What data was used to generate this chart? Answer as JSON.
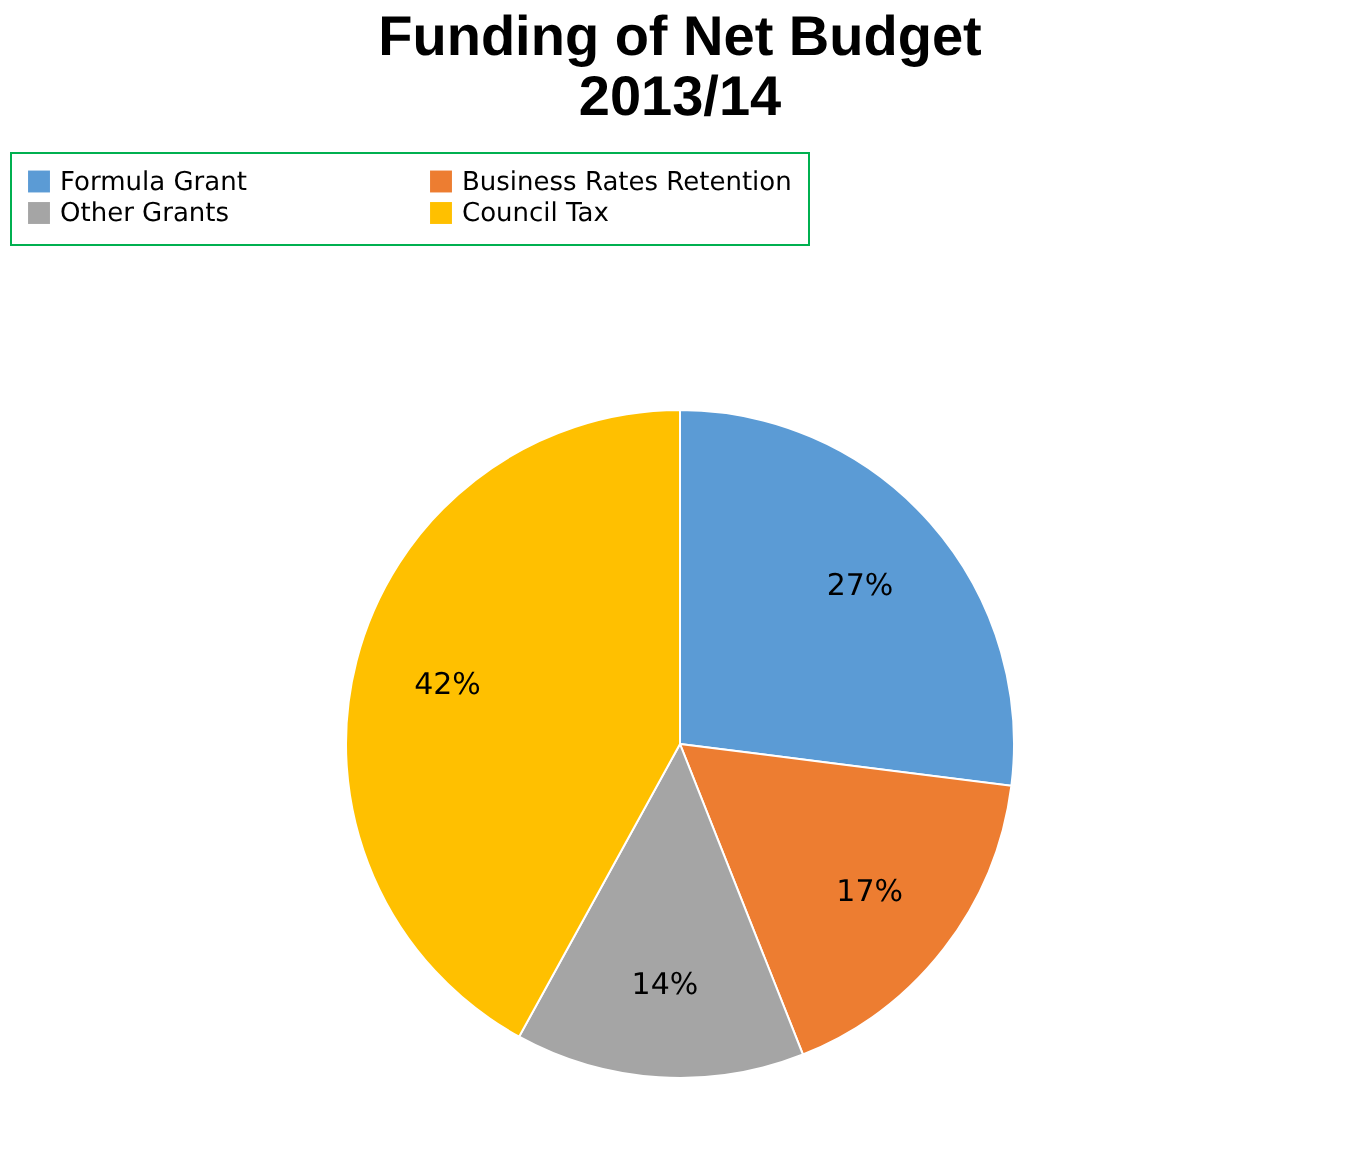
{
  "chart_data": {
    "type": "pie",
    "title": "Funding of Net Budget 2013/14",
    "categories": [
      "Formula Grant",
      "Business Rates Retention",
      "Other Grants",
      "Council Tax"
    ],
    "values": [
      27,
      17,
      14,
      42
    ],
    "colors": [
      "#5b9bd5",
      "#ed7d31",
      "#a5a5a5",
      "#ffc000"
    ],
    "value_labels": [
      "27%",
      "17%",
      "14%",
      "42%"
    ],
    "legend": "top"
  }
}
